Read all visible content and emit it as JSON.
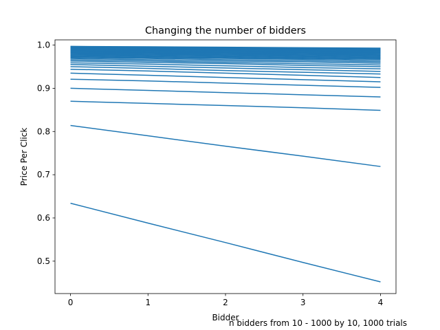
{
  "chart_data": {
    "type": "line",
    "title": "Changing the number of bidders",
    "xlabel": "Bidder",
    "ylabel": "Price Per Click",
    "caption": "n bidders from 10 - 1000 by 10, 1000 trials",
    "x": [
      0,
      1,
      2,
      3,
      4
    ],
    "x_ticks": [
      "0",
      "1",
      "2",
      "3",
      "4"
    ],
    "y_ticks": [
      "0.5",
      "0.6",
      "0.7",
      "0.8",
      "0.9",
      "1.0"
    ],
    "xlim": [
      -0.2,
      4.2
    ],
    "ylim": [
      0.425,
      1.012
    ],
    "color": "#1f77b4",
    "grid": false,
    "series": [
      {
        "values": [
          0.634,
          0.588,
          0.543,
          0.497,
          0.452
        ]
      },
      {
        "values": [
          0.814,
          0.79,
          0.766,
          0.743,
          0.719
        ]
      },
      {
        "values": [
          0.87,
          0.865,
          0.86,
          0.855,
          0.849
        ]
      },
      {
        "values": [
          0.9,
          0.895,
          0.89,
          0.885,
          0.88
        ]
      },
      {
        "values": [
          0.921,
          0.917,
          0.912,
          0.907,
          0.902
        ]
      },
      {
        "values": [
          0.935,
          0.93,
          0.925,
          0.92,
          0.915
        ]
      },
      {
        "values": [
          0.944,
          0.94,
          0.935,
          0.93,
          0.925
        ]
      },
      {
        "values": [
          0.95,
          0.946,
          0.941,
          0.937,
          0.933
        ]
      },
      {
        "values": [
          0.955,
          0.951,
          0.947,
          0.943,
          0.939
        ]
      },
      {
        "values": [
          0.959,
          0.956,
          0.952,
          0.948,
          0.945
        ]
      },
      {
        "values": [
          0.963,
          0.96,
          0.957,
          0.953,
          0.95
        ]
      },
      {
        "values": [
          0.966,
          0.963,
          0.96,
          0.957,
          0.954
        ]
      },
      {
        "values": [
          0.969,
          0.966,
          0.963,
          0.961,
          0.958
        ]
      },
      {
        "values": [
          0.971,
          0.969,
          0.966,
          0.964,
          0.961
        ]
      },
      {
        "values": [
          0.973,
          0.971,
          0.969,
          0.967,
          0.964
        ]
      },
      {
        "values": [
          0.975,
          0.973,
          0.971,
          0.969,
          0.967
        ]
      },
      {
        "values": [
          0.977,
          0.975,
          0.973,
          0.971,
          0.969
        ]
      },
      {
        "values": [
          0.978,
          0.977,
          0.975,
          0.973,
          0.971
        ]
      },
      {
        "values": [
          0.98,
          0.978,
          0.977,
          0.975,
          0.973
        ]
      },
      {
        "values": [
          0.981,
          0.98,
          0.978,
          0.977,
          0.975
        ]
      },
      {
        "values": [
          0.982,
          0.981,
          0.98,
          0.978,
          0.977
        ]
      },
      {
        "values": [
          0.983,
          0.982,
          0.981,
          0.98,
          0.978
        ]
      },
      {
        "values": [
          0.984,
          0.983,
          0.982,
          0.981,
          0.98
        ]
      },
      {
        "values": [
          0.985,
          0.984,
          0.983,
          0.982,
          0.981
        ]
      },
      {
        "values": [
          0.986,
          0.985,
          0.984,
          0.983,
          0.982
        ]
      },
      {
        "values": [
          0.987,
          0.986,
          0.985,
          0.984,
          0.983
        ]
      },
      {
        "values": [
          0.988,
          0.987,
          0.986,
          0.985,
          0.984
        ]
      },
      {
        "values": [
          0.989,
          0.988,
          0.987,
          0.986,
          0.985
        ]
      },
      {
        "values": [
          0.99,
          0.989,
          0.988,
          0.987,
          0.986
        ]
      },
      {
        "values": [
          0.991,
          0.99,
          0.989,
          0.988,
          0.987
        ]
      },
      {
        "values": [
          0.992,
          0.991,
          0.99,
          0.989,
          0.988
        ]
      },
      {
        "values": [
          0.993,
          0.992,
          0.991,
          0.99,
          0.989
        ]
      },
      {
        "values": [
          0.994,
          0.993,
          0.992,
          0.991,
          0.99
        ]
      },
      {
        "values": [
          0.995,
          0.994,
          0.993,
          0.992,
          0.991
        ]
      },
      {
        "values": [
          0.996,
          0.995,
          0.994,
          0.993,
          0.992
        ]
      },
      {
        "values": [
          0.997,
          0.996,
          0.995,
          0.994,
          0.993
        ]
      }
    ]
  }
}
